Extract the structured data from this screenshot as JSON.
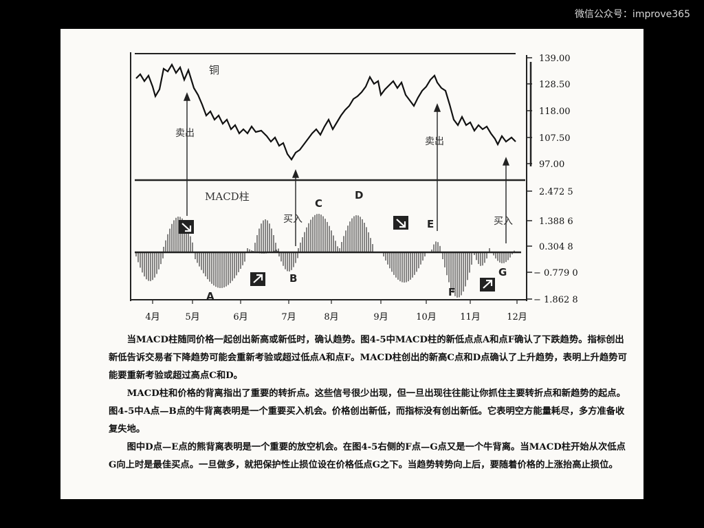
{
  "watermark": "微信公众号：improve365",
  "chart": {
    "price_label": "铜",
    "macd_label": "MACD柱",
    "sell_label": "卖出",
    "buy_label": "买入",
    "price_ticks": [
      "139.00",
      "128.50",
      "118.00",
      "107.50",
      "97.00"
    ],
    "macd_ticks": [
      "2.472 5",
      "1.388 6",
      "0.304 8",
      "− 0.779 0",
      "− 1.862 8"
    ],
    "months": [
      "4月",
      "5月",
      "6月",
      "7月",
      "8月",
      "9月",
      "10月",
      "11月",
      "12月"
    ],
    "points": [
      "A",
      "B",
      "C",
      "D",
      "E",
      "F",
      "G"
    ]
  },
  "caption": {
    "p1": "当MACD柱随同价格一起创出新高或新低时，确认趋势。图4-5中MACD柱的新低点点A和点F确认了下跌趋势。指标创出新低告诉交易者下降趋势可能会重新考验或超过低点A和点F。MACD柱创出的新高C点和D点确认了上升趋势，表明上升趋势可能要重新考验或超过高点C和D。",
    "p2": "MACD柱和价格的背离指出了重要的转折点。这些信号很少出现，但一旦出现往往能让你抓住主要转折点和新趋势的起点。图4-5中A点—B点的牛背离表明是一个重要买入机会。价格创出新低，而指标没有创出新低。它表明空方能量耗尽，多方准备收复失地。",
    "p3": "图中D点—E点的熊背离表明是一个重要的放空机会。在图4-5右侧的F点—G点又是一个牛背离。当MACD柱开始从次低点G向上时是最佳买点。一旦做多，就把保护性止损位设在价格低点G之下。当趋势转势向上后，要随着价格的上涨抬高止损位。"
  }
}
